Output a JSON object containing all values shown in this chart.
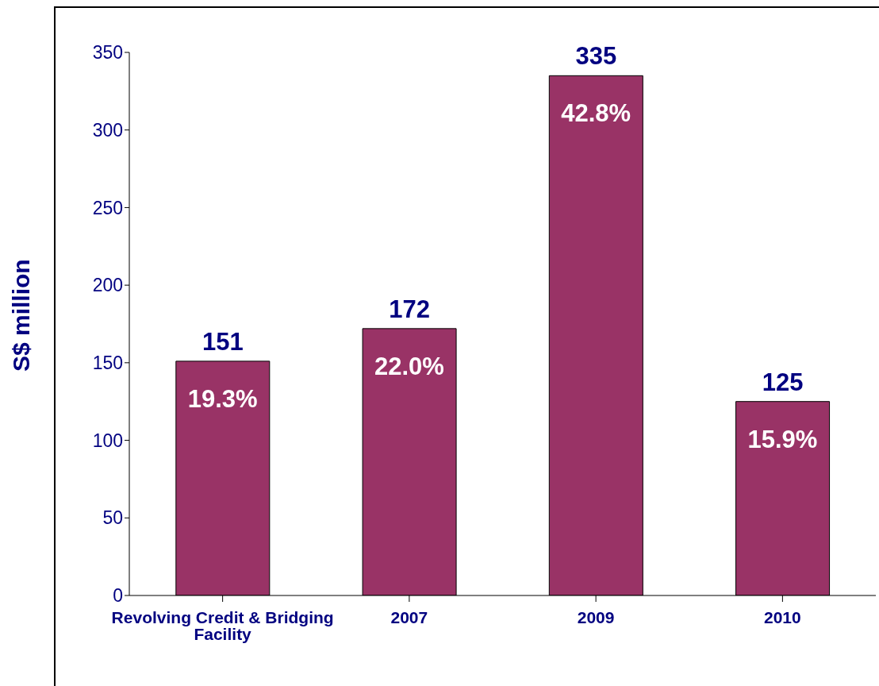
{
  "chart_data": {
    "type": "bar",
    "ylabel": "S$ million",
    "categories": [
      "Revolving Credit & Bridging Facility",
      "2007",
      "2009",
      "2010"
    ],
    "values": [
      151,
      172,
      335,
      125
    ],
    "color": "#993366",
    "data_labels": true,
    "annotations": [
      {
        "text": "19.3%",
        "x": "Revolving Credit & Bridging Facility",
        "y": 151
      },
      {
        "text": "22.0%",
        "x": "2007",
        "y": 172
      },
      {
        "text": "42.8%",
        "x": "2009",
        "y": 335
      },
      {
        "text": "15.9%",
        "x": "2010",
        "y": 125
      }
    ],
    "ylim": [
      0,
      350
    ],
    "yticks": [
      0,
      50,
      100,
      150,
      200,
      250,
      300,
      350
    ],
    "grid": false,
    "legend": false
  }
}
